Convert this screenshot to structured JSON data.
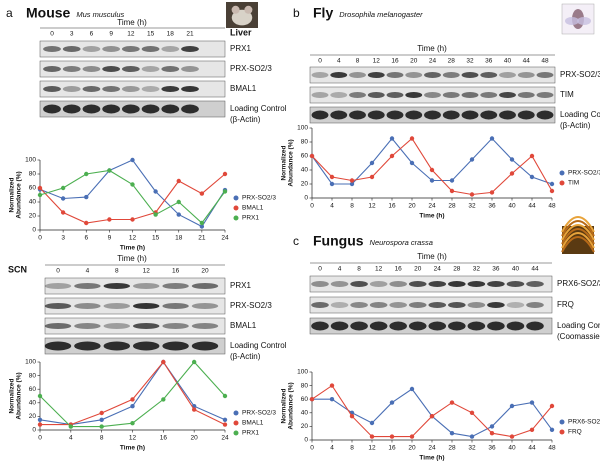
{
  "panels": [
    {
      "label": "a",
      "title": "Mouse",
      "subtitle": "Mus musculus"
    },
    {
      "label": "b",
      "title": "Fly",
      "subtitle": "Drosophila melanogaster"
    },
    {
      "label": "c",
      "title": "Fungus",
      "subtitle": "Neurospora crassa"
    }
  ],
  "blots": [
    {
      "tissue": "Liver",
      "time_label": "Time (h)",
      "times": [
        0,
        3,
        6,
        9,
        12,
        15,
        18,
        21
      ],
      "rows": [
        [
          "PRX1"
        ],
        [
          "PRX-SO2/3"
        ],
        [
          "BMAL1"
        ],
        [
          "Loading Control",
          "(β-Actin)"
        ]
      ]
    },
    {
      "tissue": "SCN",
      "time_label": "Time (h)",
      "times": [
        0,
        4,
        8,
        12,
        16,
        20
      ],
      "rows": [
        [
          "PRX1"
        ],
        [
          "PRX-SO2/3"
        ],
        [
          "BMAL1"
        ],
        [
          "Loading Control",
          "(β-Actin)"
        ]
      ]
    },
    {
      "time_label": "Time (h)",
      "times": [
        0,
        4,
        8,
        12,
        16,
        20,
        24,
        28,
        32,
        36,
        40,
        44,
        48
      ],
      "rows": [
        [
          "PRX-SO2/3"
        ],
        [
          "TIM"
        ],
        [
          "Loading Control",
          "(β-Actin)"
        ]
      ]
    },
    {
      "time_label": "Time (h)",
      "times": [
        0,
        4,
        8,
        12,
        16,
        20,
        24,
        28,
        32,
        36,
        40,
        44
      ],
      "rows": [
        [
          "PRX6-SO2/3"
        ],
        [
          "FRQ"
        ],
        [
          "Loading Control",
          "(Coomassie Blue)"
        ]
      ]
    }
  ],
  "chart_data": [
    {
      "type": "line",
      "xlabel": "Time (h)",
      "ylabel": [
        "Normalized",
        "Abundance (%)"
      ],
      "x": [
        0,
        3,
        6,
        9,
        12,
        15,
        18,
        21,
        24
      ],
      "xlim": [
        0,
        24
      ],
      "xticks": [
        0,
        3,
        6,
        9,
        12,
        15,
        18,
        21,
        24
      ],
      "ylim": [
        0,
        100
      ],
      "yticks": [
        0,
        20,
        40,
        60,
        80,
        100
      ],
      "series": [
        {
          "name": "PRX-SO2/3",
          "color": "#4a6fb5",
          "values": [
            58,
            45,
            47,
            85,
            100,
            55,
            22,
            5,
            57
          ]
        },
        {
          "name": "BMAL1",
          "color": "#e0483a",
          "values": [
            60,
            25,
            10,
            15,
            15,
            25,
            70,
            52,
            80
          ]
        },
        {
          "name": "PRX1",
          "color": "#4caf50",
          "values": [
            50,
            60,
            80,
            85,
            65,
            22,
            40,
            10,
            55
          ]
        }
      ]
    },
    {
      "type": "line",
      "xlabel": "Time (h)",
      "ylabel": [
        "Normalized",
        "Abundance (%)"
      ],
      "x": [
        0,
        4,
        8,
        12,
        16,
        20,
        24
      ],
      "xlim": [
        0,
        24
      ],
      "xticks": [
        0,
        4,
        8,
        12,
        16,
        20,
        24
      ],
      "ylim": [
        0,
        100
      ],
      "yticks": [
        0,
        20,
        40,
        60,
        80,
        100
      ],
      "series": [
        {
          "name": "PRX-SO2/3",
          "color": "#4a6fb5",
          "values": [
            15,
            8,
            15,
            35,
            100,
            35,
            15
          ]
        },
        {
          "name": "BMAL1",
          "color": "#e0483a",
          "values": [
            8,
            8,
            25,
            45,
            100,
            30,
            8
          ]
        },
        {
          "name": "PRX1",
          "color": "#4caf50",
          "values": [
            50,
            5,
            5,
            10,
            45,
            100,
            50
          ]
        }
      ]
    },
    {
      "type": "line",
      "xlabel": "Time (h)",
      "ylabel": [
        "Normalized",
        "Abundance (%)"
      ],
      "x": [
        0,
        4,
        8,
        12,
        16,
        20,
        24,
        28,
        32,
        36,
        40,
        44,
        48
      ],
      "xlim": [
        0,
        48
      ],
      "xticks": [
        0,
        4,
        8,
        12,
        16,
        20,
        24,
        28,
        32,
        36,
        40,
        44,
        48
      ],
      "ylim": [
        0,
        100
      ],
      "yticks": [
        0,
        20,
        40,
        60,
        80,
        100
      ],
      "series": [
        {
          "name": "PRX-SO2/3",
          "color": "#4a6fb5",
          "values": [
            60,
            20,
            20,
            50,
            85,
            50,
            25,
            25,
            55,
            85,
            55,
            30,
            20
          ]
        },
        {
          "name": "TIM",
          "color": "#e0483a",
          "values": [
            60,
            30,
            25,
            30,
            60,
            85,
            40,
            10,
            5,
            8,
            35,
            60,
            10
          ]
        }
      ]
    },
    {
      "type": "line",
      "xlabel": "Time (h)",
      "ylabel": [
        "Normalized",
        "Abundance (%)"
      ],
      "x": [
        0,
        4,
        8,
        12,
        16,
        20,
        24,
        28,
        32,
        36,
        40,
        44,
        48
      ],
      "xlim": [
        0,
        48
      ],
      "xticks": [
        0,
        4,
        8,
        12,
        16,
        20,
        24,
        28,
        32,
        36,
        40,
        44,
        48
      ],
      "ylim": [
        0,
        100
      ],
      "yticks": [
        0,
        20,
        40,
        60,
        80,
        100
      ],
      "series": [
        {
          "name": "PRX6-SO2/3",
          "color": "#4a6fb5",
          "values": [
            60,
            60,
            40,
            25,
            55,
            75,
            35,
            10,
            5,
            20,
            50,
            55,
            15
          ]
        },
        {
          "name": "FRQ",
          "color": "#e0483a",
          "values": [
            60,
            80,
            35,
            5,
            5,
            5,
            35,
            55,
            40,
            10,
            5,
            15,
            50
          ]
        }
      ]
    }
  ]
}
